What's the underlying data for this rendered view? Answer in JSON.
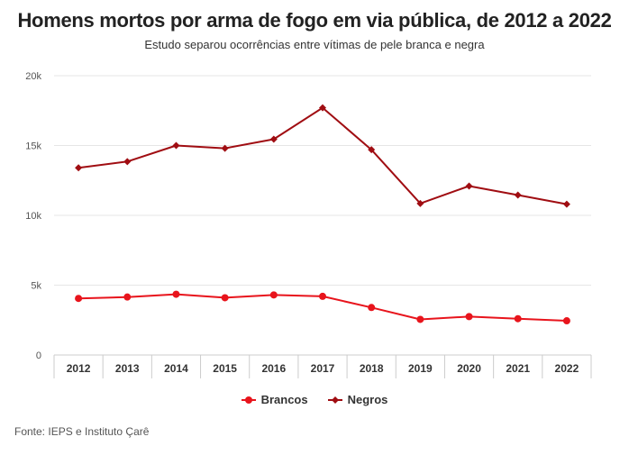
{
  "header": {
    "title": "Homens mortos por arma de fogo em via pública, de 2012 a 2022",
    "subtitle": "Estudo separou ocorrências entre vítimas de pele branca e negra"
  },
  "footer": {
    "source": "Fonte: IEPS e Instituto Çarê"
  },
  "colors": {
    "brancos": "#e8141c",
    "negros": "#a00d12",
    "grid": "#e6e6e6",
    "axis": "#cccccc"
  },
  "chart_data": {
    "type": "line",
    "title": "Homens mortos por arma de fogo em via pública, de 2012 a 2022",
    "subtitle": "Estudo separou ocorrências entre vítimas de pele branca e negra",
    "categories": [
      "2012",
      "2013",
      "2014",
      "2015",
      "2016",
      "2017",
      "2018",
      "2019",
      "2020",
      "2021",
      "2022"
    ],
    "y_ticks": [
      {
        "value": 0,
        "label": "0"
      },
      {
        "value": 5000,
        "label": "5k"
      },
      {
        "value": 10000,
        "label": "10k"
      },
      {
        "value": 15000,
        "label": "15k"
      },
      {
        "value": 20000,
        "label": "20k"
      }
    ],
    "ylim": [
      0,
      20000
    ],
    "grid": true,
    "legend_position": "bottom-center",
    "series": [
      {
        "name": "Brancos",
        "marker": "circle",
        "color": "#e8141c",
        "values": [
          4050,
          4150,
          4350,
          4100,
          4300,
          4200,
          3400,
          2550,
          2750,
          2600,
          2450
        ]
      },
      {
        "name": "Negros",
        "marker": "diamond",
        "color": "#a00d12",
        "values": [
          13400,
          13850,
          15000,
          14800,
          15450,
          17700,
          14700,
          10850,
          12100,
          11450,
          10800
        ]
      }
    ]
  }
}
